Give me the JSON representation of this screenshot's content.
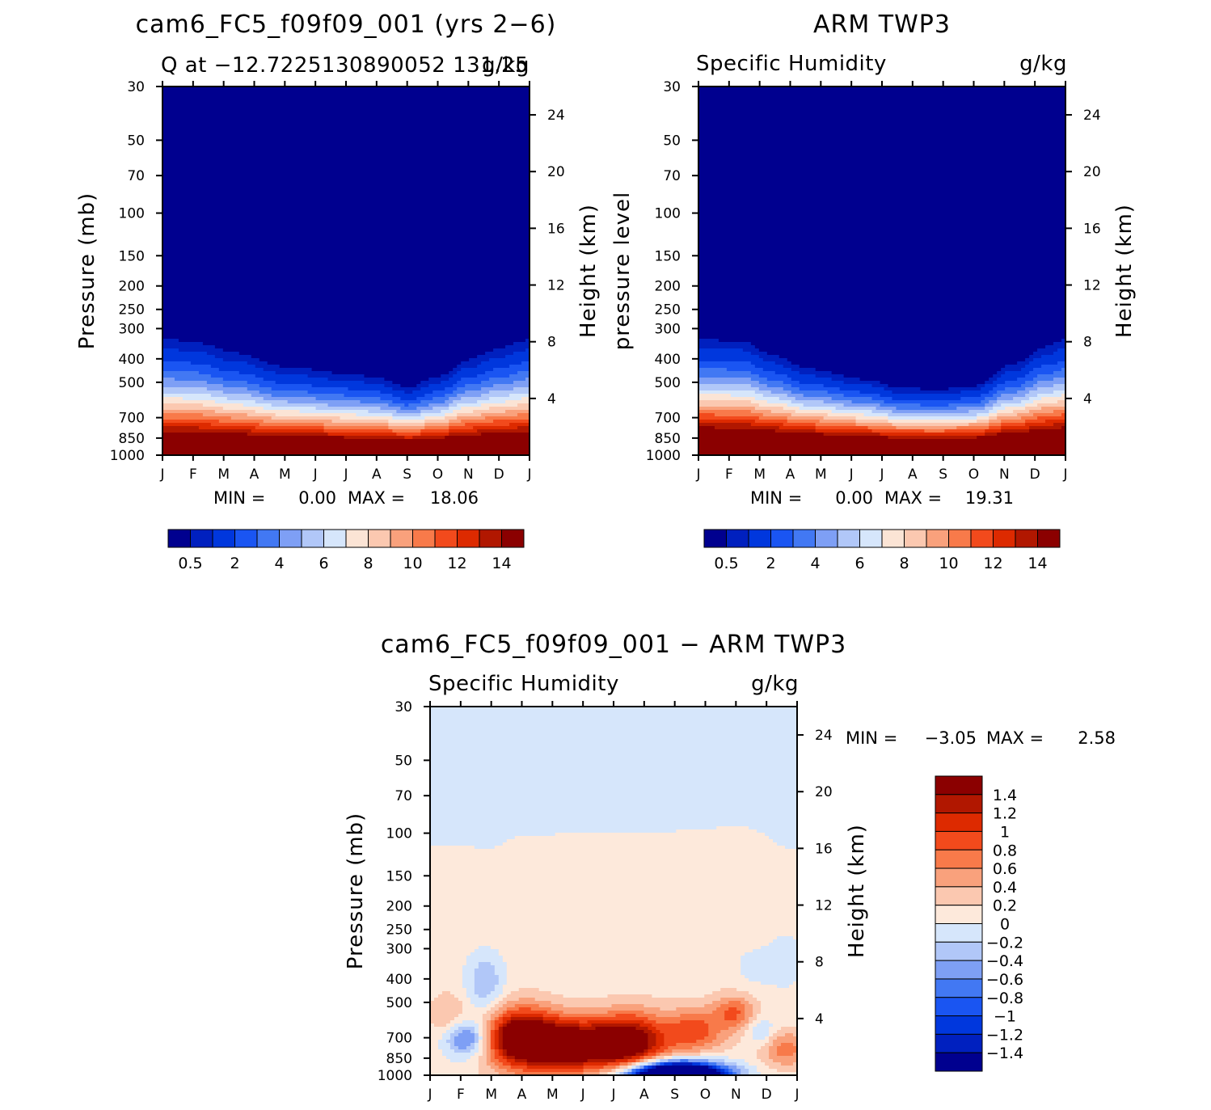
{
  "chart_data": [
    {
      "type": "heatmap",
      "title": "cam6_FC5_f09f09_001 (yrs 2−6)",
      "subtitle_left": "Q at −12.7225130890052 131.25",
      "subtitle_right": "g/kg",
      "ylabel": "Pressure (mb)",
      "ylabel_right": "Height (km)",
      "months": [
        "J",
        "F",
        "M",
        "A",
        "M",
        "J",
        "J",
        "A",
        "S",
        "O",
        "N",
        "D",
        "J"
      ],
      "pressure_ticks": [
        30,
        50,
        70,
        100,
        150,
        200,
        250,
        300,
        400,
        500,
        700,
        850,
        1000
      ],
      "height_ticks": [
        24,
        20,
        16,
        12,
        8,
        4
      ],
      "ylim": [
        30,
        1000
      ],
      "stats": {
        "min_label": "MIN =",
        "min": "0.00",
        "max_label": "MAX =",
        "max": "18.06"
      },
      "colorbar_labels": [
        "0.5",
        "2",
        "4",
        "6",
        "8",
        "10",
        "12",
        "14"
      ],
      "colorbar_colors": [
        "#00008f",
        "#0020bf",
        "#0037dd",
        "#1a55f2",
        "#4278f3",
        "#7e9ff5",
        "#b1c7f8",
        "#d6e6fb",
        "#fbe4d5",
        "#fbc8b0",
        "#f9a17c",
        "#f87a4a",
        "#f24a1c",
        "#dd2a00",
        "#b11700",
        "#8b0000"
      ],
      "field": "specific_humidity_model"
    },
    {
      "type": "heatmap",
      "title": "ARM TWP3",
      "subtitle_left": "Specific Humidity",
      "subtitle_right": "g/kg",
      "ylabel": "pressure level",
      "ylabel_right": "Height (km)",
      "months": [
        "J",
        "F",
        "M",
        "A",
        "M",
        "J",
        "J",
        "A",
        "S",
        "O",
        "N",
        "D",
        "J"
      ],
      "pressure_ticks": [
        30,
        50,
        70,
        100,
        150,
        200,
        250,
        300,
        400,
        500,
        700,
        850,
        1000
      ],
      "height_ticks": [
        24,
        20,
        16,
        12,
        8,
        4
      ],
      "ylim": [
        30,
        1000
      ],
      "stats": {
        "min_label": "MIN =",
        "min": "0.00",
        "max_label": "MAX =",
        "max": "19.31"
      },
      "colorbar_labels": [
        "0.5",
        "2",
        "4",
        "6",
        "8",
        "10",
        "12",
        "14"
      ],
      "colorbar_colors": [
        "#00008f",
        "#0020bf",
        "#0037dd",
        "#1a55f2",
        "#4278f3",
        "#7e9ff5",
        "#b1c7f8",
        "#d6e6fb",
        "#fbe4d5",
        "#fbc8b0",
        "#f9a17c",
        "#f87a4a",
        "#f24a1c",
        "#dd2a00",
        "#b11700",
        "#8b0000"
      ],
      "field": "specific_humidity_obs"
    },
    {
      "type": "heatmap",
      "title": "cam6_FC5_f09f09_001 − ARM TWP3",
      "subtitle_left": "Specific Humidity",
      "subtitle_right": "g/kg",
      "ylabel": "Pressure (mb)",
      "ylabel_right": "Height (km)",
      "months": [
        "J",
        "F",
        "M",
        "A",
        "M",
        "J",
        "J",
        "A",
        "S",
        "O",
        "N",
        "D",
        "J"
      ],
      "pressure_ticks": [
        30,
        50,
        70,
        100,
        150,
        200,
        250,
        300,
        400,
        500,
        700,
        850,
        1000
      ],
      "height_ticks": [
        24,
        20,
        16,
        12,
        8,
        4
      ],
      "ylim": [
        30,
        1000
      ],
      "stats": {
        "min_label": "MIN =",
        "min": "−3.05",
        "max_label": "MAX =",
        "max": "2.58"
      },
      "colorbar_labels": [
        "1.4",
        "1.2",
        "1",
        "0.8",
        "0.6",
        "0.4",
        "0.2",
        "0",
        "−0.2",
        "−0.4",
        "−0.6",
        "−0.8",
        "−1",
        "−1.2",
        "−1.4"
      ],
      "colorbar_colors": [
        "#8b0000",
        "#b11700",
        "#dd2a00",
        "#f24a1c",
        "#f87a4a",
        "#f9a17c",
        "#fbc8b0",
        "#fde9db",
        "#d6e6fb",
        "#b1c7f8",
        "#7e9ff5",
        "#4278f3",
        "#1a55f2",
        "#0037dd",
        "#0020bf",
        "#00008f"
      ],
      "field": "specific_humidity_diff"
    }
  ]
}
